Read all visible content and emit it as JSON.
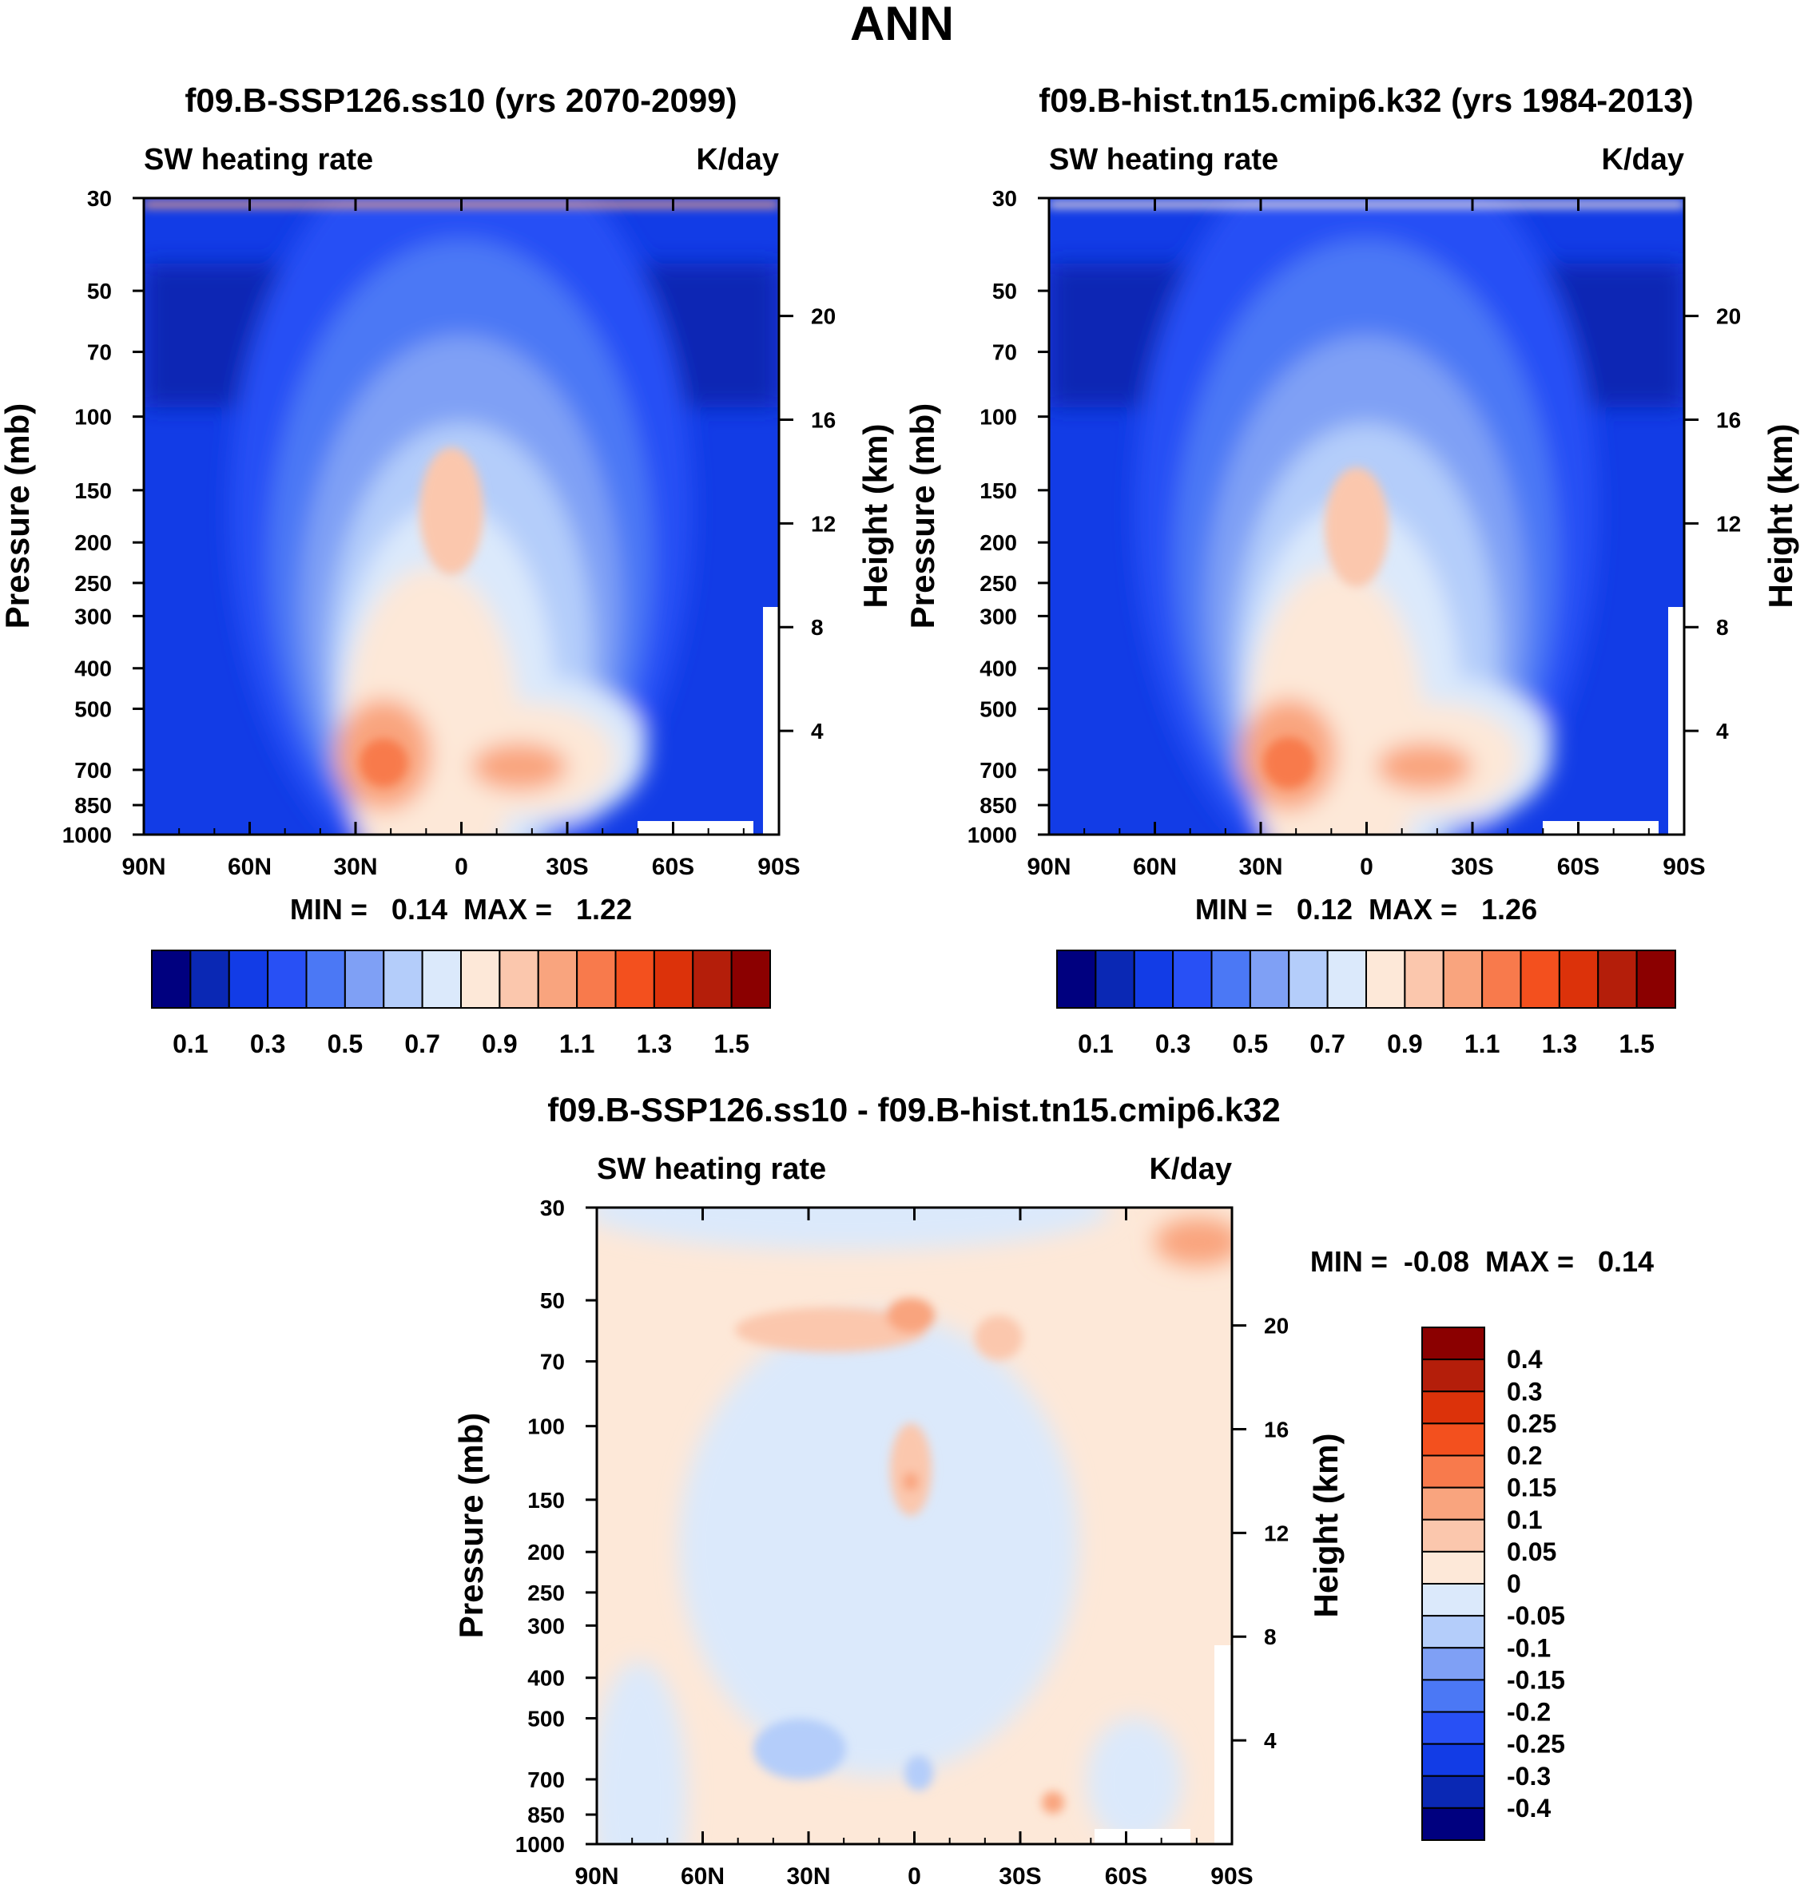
{
  "figure_title": "ANN",
  "chart_data": [
    {
      "type": "heatmap",
      "title": "f09.B-SSP126.ss10 (yrs 2070-2099)",
      "left_label": "SW heating rate",
      "right_label": "K/day",
      "xlabel": "",
      "ylabel": "Pressure (mb)",
      "y2label": "Height (km)",
      "x_ticks": [
        "90N",
        "60N",
        "30N",
        "0",
        "30S",
        "60S",
        "90S"
      ],
      "x_range": [
        90,
        -90
      ],
      "y_ticks": [
        30,
        50,
        70,
        100,
        150,
        200,
        250,
        300,
        400,
        500,
        700,
        850,
        1000
      ],
      "y_range": [
        30,
        1000
      ],
      "y2_ticks": [
        20,
        16,
        12,
        8,
        4
      ],
      "stats_text": "MIN =   0.14  MAX =   1.22",
      "min": 0.14,
      "max": 1.22,
      "colorbar": {
        "labels": [
          "0.1",
          "0.3",
          "0.5",
          "0.7",
          "0.9",
          "1.1",
          "1.3",
          "1.5"
        ],
        "colors": [
          "#00007f",
          "#0a28b4",
          "#123ce6",
          "#2850f5",
          "#4b78f5",
          "#7fa0f5",
          "#b4cdfa",
          "#dbe9fb",
          "#fde8d8",
          "#fbc7ad",
          "#f9a47e",
          "#f87a4c",
          "#f3501e",
          "#dc320a",
          "#b41e0a",
          "#8b0000"
        ]
      }
    },
    {
      "type": "heatmap",
      "title": "f09.B-hist.tn15.cmip6.k32 (yrs 1984-2013)",
      "left_label": "SW heating rate",
      "right_label": "K/day",
      "xlabel": "",
      "ylabel": "Pressure (mb)",
      "y2label": "Height (km)",
      "x_ticks": [
        "90N",
        "60N",
        "30N",
        "0",
        "30S",
        "60S",
        "90S"
      ],
      "x_range": [
        90,
        -90
      ],
      "y_ticks": [
        30,
        50,
        70,
        100,
        150,
        200,
        250,
        300,
        400,
        500,
        700,
        850,
        1000
      ],
      "y_range": [
        30,
        1000
      ],
      "y2_ticks": [
        20,
        16,
        12,
        8,
        4
      ],
      "stats_text": "MIN =   0.12  MAX =   1.26",
      "min": 0.12,
      "max": 1.26,
      "colorbar": {
        "labels": [
          "0.1",
          "0.3",
          "0.5",
          "0.7",
          "0.9",
          "1.1",
          "1.3",
          "1.5"
        ],
        "colors": [
          "#00007f",
          "#0a28b4",
          "#123ce6",
          "#2850f5",
          "#4b78f5",
          "#7fa0f5",
          "#b4cdfa",
          "#dbe9fb",
          "#fde8d8",
          "#fbc7ad",
          "#f9a47e",
          "#f87a4c",
          "#f3501e",
          "#dc320a",
          "#b41e0a",
          "#8b0000"
        ]
      }
    },
    {
      "type": "heatmap",
      "title": "f09.B-SSP126.ss10 - f09.B-hist.tn15.cmip6.k32",
      "left_label": "SW heating rate",
      "right_label": "K/day",
      "xlabel": "",
      "ylabel": "Pressure (mb)",
      "y2label": "Height (km)",
      "x_ticks": [
        "90N",
        "60N",
        "30N",
        "0",
        "30S",
        "60S",
        "90S"
      ],
      "x_range": [
        90,
        -90
      ],
      "y_ticks": [
        30,
        50,
        70,
        100,
        150,
        200,
        250,
        300,
        400,
        500,
        700,
        850,
        1000
      ],
      "y_range": [
        30,
        1000
      ],
      "y2_ticks": [
        20,
        16,
        12,
        8,
        4
      ],
      "stats_text": "MIN =  -0.08  MAX =   0.14",
      "min": -0.08,
      "max": 0.14,
      "colorbar": {
        "labels": [
          "0.4",
          "0.3",
          "0.25",
          "0.2",
          "0.15",
          "0.1",
          "0.05",
          "0",
          "-0.05",
          "-0.1",
          "-0.15",
          "-0.2",
          "-0.25",
          "-0.3",
          "-0.4"
        ],
        "colors": [
          "#8b0000",
          "#b41e0a",
          "#dc320a",
          "#f3501e",
          "#f87a4c",
          "#f9a47e",
          "#fbc7ad",
          "#fde8d8",
          "#dbe9fb",
          "#b4cdfa",
          "#7fa0f5",
          "#4b78f5",
          "#2850f5",
          "#123ce6",
          "#0a28b4",
          "#00007f"
        ]
      }
    }
  ]
}
